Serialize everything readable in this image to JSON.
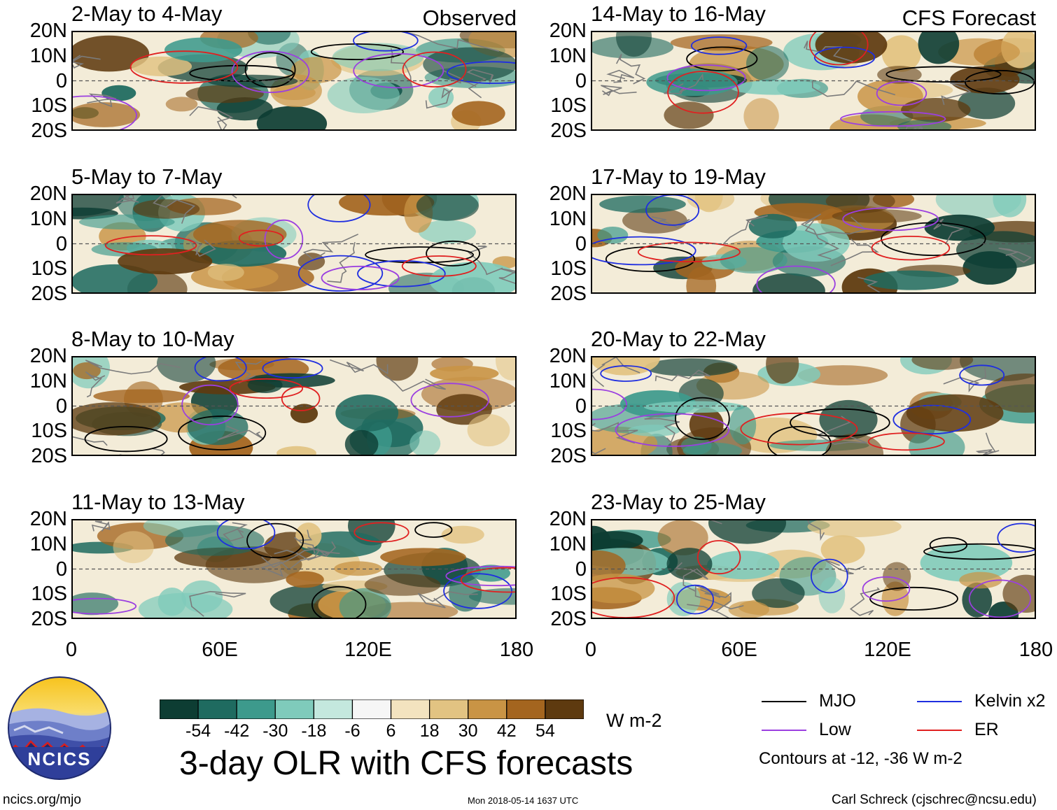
{
  "chart_data": {
    "type": "heatmap",
    "title": "3-day OLR with CFS forecasts",
    "units": "W m-2",
    "xlabel": "",
    "ylabel": "",
    "x_range": [
      0,
      180
    ],
    "y_range": [
      -20,
      20
    ],
    "x_ticks": [
      "0",
      "60E",
      "120E",
      "180"
    ],
    "y_ticks": [
      "20N",
      "10N",
      "0",
      "10S",
      "20S"
    ],
    "colorbar": {
      "levels": [
        "-54",
        "-42",
        "-30",
        "-18",
        "-6",
        "6",
        "18",
        "30",
        "42",
        "54"
      ],
      "colors": [
        "#0d3d33",
        "#1f6b60",
        "#3d9a8c",
        "#7fcbbb",
        "#c4e8de",
        "#f6f6f6",
        "#f3e3bf",
        "#e2c382",
        "#c99445",
        "#a4651f",
        "#5e3a0f"
      ]
    },
    "contours_note": "Contours at -12, -36 W m-2",
    "legend": [
      {
        "name": "MJO",
        "color": "#000000"
      },
      {
        "name": "Kelvin x2",
        "color": "#1f2ee0"
      },
      {
        "name": "Low",
        "color": "#9b3fe0"
      },
      {
        "name": "ER",
        "color": "#e02020"
      }
    ],
    "panels": [
      {
        "period": "2-May to 4-May",
        "source": "Observed",
        "column": "left",
        "row": 0
      },
      {
        "period": "5-May to 7-May",
        "source": "Observed",
        "column": "left",
        "row": 1
      },
      {
        "period": "8-May to 10-May",
        "source": "Observed",
        "column": "left",
        "row": 2
      },
      {
        "period": "11-May to 13-May",
        "source": "Observed",
        "column": "left",
        "row": 3
      },
      {
        "period": "14-May to 16-May",
        "source": "CFS Forecast",
        "column": "right",
        "row": 0
      },
      {
        "period": "17-May to 19-May",
        "source": "CFS Forecast",
        "column": "right",
        "row": 1
      },
      {
        "period": "20-May to 22-May",
        "source": "CFS Forecast",
        "column": "right",
        "row": 2
      },
      {
        "period": "23-May to 25-May",
        "source": "CFS Forecast",
        "column": "right",
        "row": 3
      }
    ]
  },
  "labels": {
    "observed": "Observed",
    "forecast": "CFS Forecast",
    "panel_titles": [
      "2-May to 4-May",
      "5-May to 7-May",
      "8-May to 10-May",
      "11-May to 13-May",
      "14-May to 16-May",
      "17-May to 19-May",
      "20-May to 22-May",
      "23-May to 25-May"
    ]
  },
  "logo": {
    "text": "NCICS"
  },
  "footer": {
    "left": "ncics.org/mjo",
    "center": "Mon 2018-05-14 1637 UTC",
    "right": "Carl Schreck (cjschrec@ncsu.edu)"
  }
}
